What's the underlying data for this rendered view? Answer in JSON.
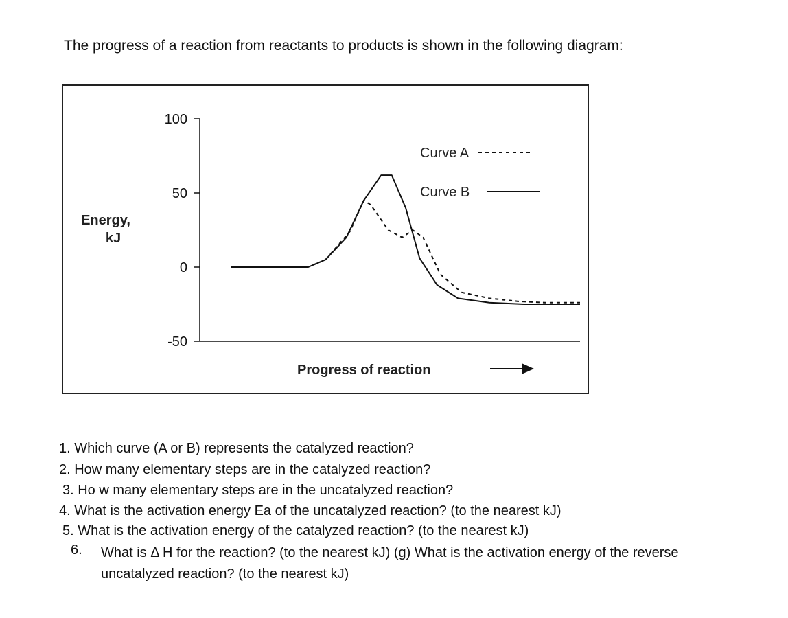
{
  "intro": "The progress of a reaction from reactants to products is shown in the following diagram:",
  "chart_data": {
    "type": "line",
    "title": "",
    "xlabel": "Progress of reaction",
    "ylabel": "Energy,\nkJ",
    "ylabel_lines": [
      "Energy,",
      "kJ"
    ],
    "ylim": [
      -50,
      100
    ],
    "yticks": [
      100,
      50,
      0,
      -50
    ],
    "ytick_labels": [
      "100",
      "50",
      "0",
      "-50"
    ],
    "x_axis_arrow": true,
    "grid": false,
    "legend_position": "top-right",
    "series": [
      {
        "name": "Curve A",
        "style": "dashed",
        "color": "#111111",
        "x": [
          0,
          0.22,
          0.27,
          0.34,
          0.38,
          0.4,
          0.45,
          0.49,
          0.52,
          0.55,
          0.6,
          0.66,
          0.74,
          0.82,
          0.9,
          1.0
        ],
        "y": [
          0,
          0,
          5,
          24,
          45,
          42,
          25,
          20,
          25,
          20,
          -5,
          -17,
          -21,
          -23,
          -24,
          -24
        ]
      },
      {
        "name": "Curve B",
        "style": "solid",
        "color": "#111111",
        "x": [
          0,
          0.22,
          0.27,
          0.33,
          0.38,
          0.43,
          0.46,
          0.5,
          0.54,
          0.59,
          0.65,
          0.74,
          0.84,
          1.0
        ],
        "y": [
          0,
          0,
          5,
          20,
          45,
          62,
          62,
          40,
          6,
          -12,
          -21,
          -24,
          -25,
          -25
        ]
      }
    ]
  },
  "questions": [
    "1. Which curve (A or B) represents the catalyzed reaction?",
    "2. How many elementary steps are in the catalyzed reaction?",
    "3. Ho w many elementary steps are in the uncatalyzed reaction?",
    "4. What is the activation energy Ea of the uncatalyzed reaction? (to the nearest kJ)",
    "5. What is the activation energy of the catalyzed reaction? (to the nearest kJ)"
  ],
  "question6": {
    "number": "6.",
    "text": "What is Δ H for the reaction? (to the nearest kJ) (g) What is the activation energy of the reverse uncatalyzed reaction? (to the nearest kJ)"
  }
}
